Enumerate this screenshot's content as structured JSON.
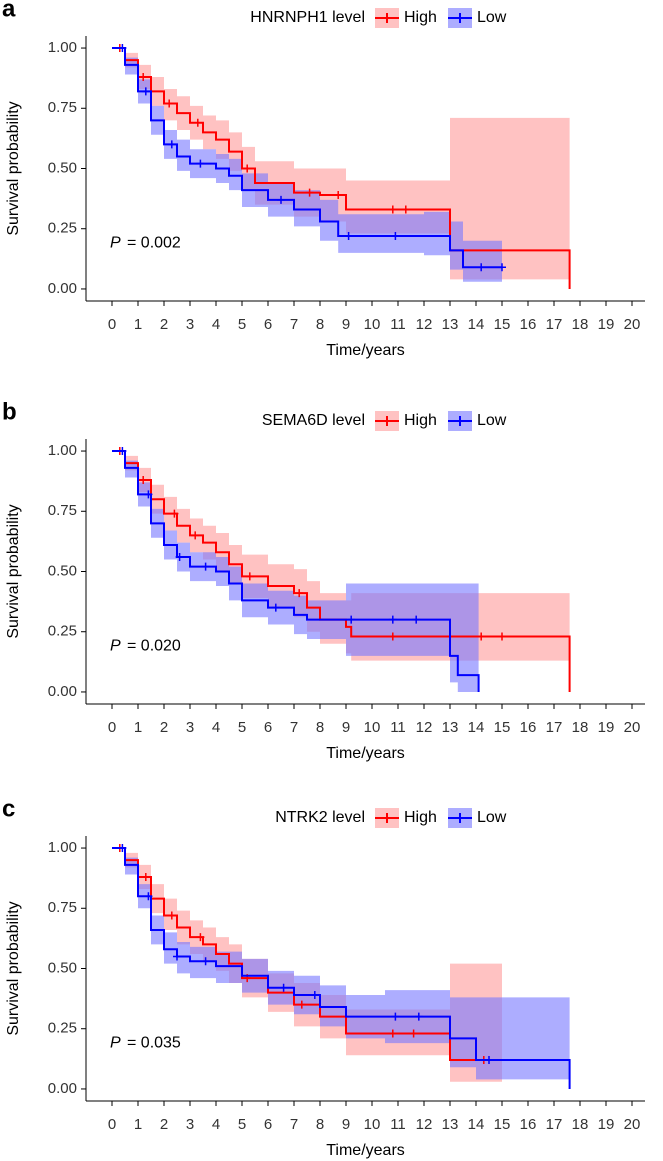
{
  "chart_data": [
    {
      "type": "line",
      "panel": "a",
      "legend_title": "HNRNPH1 level",
      "p_label": "P",
      "p_value": "= 0.002",
      "xlabel": "Time/years",
      "ylabel": "Survival probability",
      "xlim": [
        -1,
        20.5
      ],
      "ylim": [
        -0.05,
        1.05
      ],
      "xticks": [
        0,
        1,
        2,
        3,
        4,
        5,
        6,
        7,
        8,
        9,
        10,
        11,
        12,
        13,
        14,
        15,
        16,
        17,
        18,
        19,
        20
      ],
      "yticks": [
        {
          "value": 0,
          "label": "0.00"
        },
        {
          "value": 0.25,
          "label": "0.25"
        },
        {
          "value": 0.5,
          "label": "0.50"
        },
        {
          "value": 0.75,
          "label": "0.75"
        },
        {
          "value": 1,
          "label": "1.00"
        }
      ],
      "series": [
        {
          "name": "High",
          "color": "#ff0000",
          "band_color": "#ff9999",
          "x": [
            0,
            0.5,
            1,
            1.5,
            2,
            2.5,
            3,
            3.5,
            4,
            4.5,
            5,
            5.5,
            7,
            8,
            9,
            13,
            17.6
          ],
          "values": [
            1,
            0.95,
            0.88,
            0.82,
            0.77,
            0.73,
            0.69,
            0.65,
            0.62,
            0.57,
            0.5,
            0.44,
            0.4,
            0.39,
            0.33,
            0.16,
            0
          ],
          "upper": [
            1,
            0.98,
            0.93,
            0.88,
            0.83,
            0.8,
            0.76,
            0.72,
            0.7,
            0.65,
            0.59,
            0.53,
            0.5,
            0.5,
            0.45,
            0.71,
            0.71
          ],
          "lower": [
            1,
            0.92,
            0.83,
            0.76,
            0.7,
            0.66,
            0.62,
            0.58,
            0.54,
            0.49,
            0.41,
            0.35,
            0.3,
            0.28,
            0.23,
            0.04,
            0.04
          ],
          "censored": [
            0.3,
            1.2,
            2.2,
            3.3,
            5.2,
            7.6,
            8.7,
            10.8,
            11.3
          ]
        },
        {
          "name": "Low",
          "color": "#0000ff",
          "band_color": "#7777ff",
          "x": [
            0,
            0.5,
            1,
            1.5,
            2,
            2.5,
            3,
            4,
            4.5,
            5,
            6,
            7,
            8,
            8.7,
            12,
            13,
            13.5,
            15
          ],
          "values": [
            1,
            0.93,
            0.82,
            0.7,
            0.6,
            0.55,
            0.52,
            0.5,
            0.47,
            0.41,
            0.37,
            0.33,
            0.28,
            0.22,
            0.22,
            0.16,
            0.09,
            0.09
          ],
          "upper": [
            1,
            0.96,
            0.87,
            0.76,
            0.66,
            0.62,
            0.58,
            0.56,
            0.54,
            0.48,
            0.44,
            0.41,
            0.37,
            0.31,
            0.32,
            0.28,
            0.2,
            0.2
          ],
          "lower": [
            1,
            0.89,
            0.77,
            0.64,
            0.54,
            0.49,
            0.46,
            0.44,
            0.41,
            0.34,
            0.3,
            0.26,
            0.2,
            0.15,
            0.14,
            0.08,
            0.03,
            0.03
          ],
          "censored": [
            0.4,
            1.3,
            2.3,
            3.4,
            6.5,
            9.1,
            10.9,
            14.2,
            15
          ]
        }
      ]
    },
    {
      "type": "line",
      "panel": "b",
      "legend_title": "SEMA6D level",
      "p_label": "P",
      "p_value": "= 0.020",
      "xlabel": "Time/years",
      "ylabel": "Survival probability",
      "xlim": [
        -1,
        20.5
      ],
      "ylim": [
        -0.05,
        1.05
      ],
      "xticks": [
        0,
        1,
        2,
        3,
        4,
        5,
        6,
        7,
        8,
        9,
        10,
        11,
        12,
        13,
        14,
        15,
        16,
        17,
        18,
        19,
        20
      ],
      "yticks": [
        {
          "value": 0,
          "label": "0.00"
        },
        {
          "value": 0.25,
          "label": "0.25"
        },
        {
          "value": 0.5,
          "label": "0.50"
        },
        {
          "value": 0.75,
          "label": "0.75"
        },
        {
          "value": 1,
          "label": "1.00"
        }
      ],
      "series": [
        {
          "name": "High",
          "color": "#ff0000",
          "band_color": "#ff9999",
          "x": [
            0,
            0.5,
            1,
            1.5,
            2,
            2.5,
            3,
            3.5,
            4,
            4.5,
            5,
            6,
            7,
            7.5,
            8,
            9,
            9.2,
            17.6
          ],
          "values": [
            1,
            0.95,
            0.88,
            0.8,
            0.74,
            0.69,
            0.65,
            0.62,
            0.58,
            0.53,
            0.48,
            0.44,
            0.41,
            0.35,
            0.3,
            0.27,
            0.23,
            0
          ],
          "upper": [
            1,
            0.98,
            0.93,
            0.86,
            0.81,
            0.76,
            0.72,
            0.69,
            0.66,
            0.61,
            0.57,
            0.53,
            0.51,
            0.46,
            0.41,
            0.38,
            0.41,
            0.41
          ],
          "lower": [
            1,
            0.92,
            0.83,
            0.74,
            0.67,
            0.62,
            0.58,
            0.55,
            0.5,
            0.45,
            0.39,
            0.35,
            0.31,
            0.25,
            0.2,
            0.16,
            0.13,
            0.13
          ],
          "censored": [
            0.3,
            1.2,
            2.4,
            3.2,
            5.3,
            7.2,
            10.8,
            14.2,
            15
          ]
        },
        {
          "name": "Low",
          "color": "#0000ff",
          "band_color": "#7777ff",
          "x": [
            0,
            0.5,
            1,
            1.5,
            2,
            2.5,
            3,
            4,
            4.5,
            5,
            6,
            7,
            7.5,
            9,
            13,
            13.3,
            14.1
          ],
          "values": [
            1,
            0.93,
            0.82,
            0.7,
            0.61,
            0.56,
            0.52,
            0.5,
            0.45,
            0.38,
            0.35,
            0.32,
            0.3,
            0.3,
            0.15,
            0.07,
            0
          ],
          "upper": [
            1,
            0.96,
            0.87,
            0.76,
            0.67,
            0.62,
            0.58,
            0.56,
            0.52,
            0.45,
            0.42,
            0.4,
            0.38,
            0.45,
            0.45,
            0.45,
            0.45
          ],
          "lower": [
            1,
            0.89,
            0.77,
            0.64,
            0.55,
            0.5,
            0.46,
            0.44,
            0.38,
            0.31,
            0.28,
            0.24,
            0.22,
            0.15,
            0.04,
            0,
            0
          ],
          "censored": [
            0.4,
            1.4,
            2.6,
            3.6,
            6.3,
            9.2,
            10.8,
            11.7
          ]
        }
      ]
    },
    {
      "type": "line",
      "panel": "c",
      "legend_title": "NTRK2 level",
      "p_label": "P",
      "p_value": "= 0.035",
      "xlabel": "Time/years",
      "ylabel": "Survival probability",
      "xlim": [
        -1,
        20.5
      ],
      "ylim": [
        -0.05,
        1.05
      ],
      "xticks": [
        0,
        1,
        2,
        3,
        4,
        5,
        6,
        7,
        8,
        9,
        10,
        11,
        12,
        13,
        14,
        15,
        16,
        17,
        18,
        19,
        20
      ],
      "yticks": [
        {
          "value": 0,
          "label": "0.00"
        },
        {
          "value": 0.25,
          "label": "0.25"
        },
        {
          "value": 0.5,
          "label": "0.50"
        },
        {
          "value": 0.75,
          "label": "0.75"
        },
        {
          "value": 1,
          "label": "1.00"
        }
      ],
      "series": [
        {
          "name": "High",
          "color": "#ff0000",
          "band_color": "#ff9999",
          "x": [
            0,
            0.5,
            1,
            1.5,
            2,
            2.5,
            3,
            3.5,
            4,
            4.5,
            5,
            6,
            7,
            8,
            9,
            13,
            15
          ],
          "values": [
            1,
            0.95,
            0.88,
            0.79,
            0.72,
            0.67,
            0.63,
            0.6,
            0.56,
            0.52,
            0.46,
            0.4,
            0.35,
            0.3,
            0.23,
            0.12,
            0.12
          ],
          "upper": [
            1,
            0.98,
            0.93,
            0.85,
            0.79,
            0.74,
            0.7,
            0.67,
            0.63,
            0.6,
            0.54,
            0.48,
            0.44,
            0.39,
            0.33,
            0.52,
            0.52
          ],
          "lower": [
            1,
            0.92,
            0.83,
            0.73,
            0.66,
            0.6,
            0.56,
            0.53,
            0.49,
            0.44,
            0.38,
            0.32,
            0.26,
            0.21,
            0.14,
            0.03,
            0.03
          ],
          "censored": [
            0.3,
            1.3,
            2.3,
            3.4,
            5.2,
            7.3,
            10.8,
            11.6,
            14.3
          ]
        },
        {
          "name": "Low",
          "color": "#0000ff",
          "band_color": "#7777ff",
          "x": [
            0,
            0.5,
            1,
            1.5,
            2,
            2.5,
            3,
            4,
            5,
            6,
            7,
            8,
            9,
            10.5,
            13,
            14,
            17.6
          ],
          "values": [
            1,
            0.93,
            0.8,
            0.66,
            0.58,
            0.55,
            0.53,
            0.51,
            0.47,
            0.42,
            0.39,
            0.34,
            0.3,
            0.3,
            0.21,
            0.12,
            0
          ],
          "upper": [
            1,
            0.96,
            0.85,
            0.72,
            0.65,
            0.61,
            0.59,
            0.57,
            0.54,
            0.49,
            0.47,
            0.43,
            0.39,
            0.41,
            0.38,
            0.38,
            0.38
          ],
          "lower": [
            1,
            0.89,
            0.75,
            0.6,
            0.52,
            0.48,
            0.46,
            0.44,
            0.4,
            0.35,
            0.31,
            0.26,
            0.21,
            0.19,
            0.09,
            0.04,
            0.04
          ],
          "censored": [
            0.4,
            1.4,
            2.5,
            3.6,
            6.6,
            7.8,
            10.9,
            11.8,
            14.5
          ]
        }
      ]
    }
  ]
}
